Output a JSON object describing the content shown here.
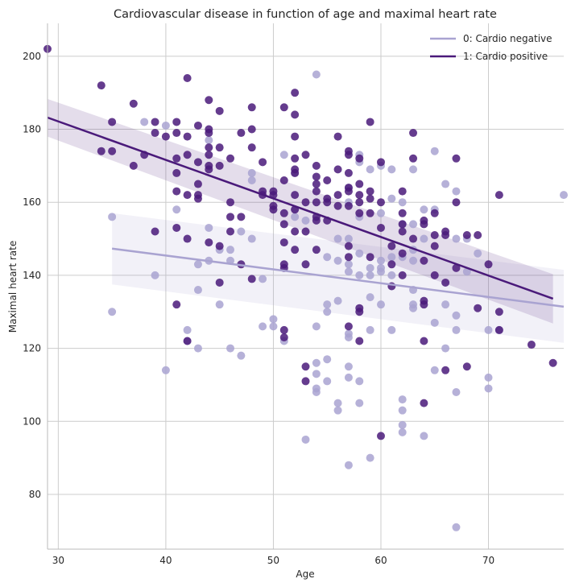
{
  "chart_data": {
    "type": "scatter",
    "title": "Cardiovascular disease in function of age and maximal heart rate",
    "xlabel": "Age",
    "ylabel": "Maximal heart rate",
    "xlim": [
      29,
      77
    ],
    "ylim": [
      65,
      209
    ],
    "xticks": [
      30,
      40,
      50,
      60,
      70
    ],
    "yticks": [
      80,
      100,
      120,
      140,
      160,
      180,
      200
    ],
    "grid": true,
    "legend_position": "top-right",
    "series": [
      {
        "name": "0: Cardio negative",
        "color": "#a9a3d1",
        "regression": {
          "x": [
            35,
            77
          ],
          "y": [
            147.3,
            131.4
          ],
          "ci_lower": [
            137.5,
            121.5
          ],
          "ci_upper": [
            157.0,
            141.5
          ]
        },
        "points": [
          [
            35,
            156
          ],
          [
            35,
            130
          ],
          [
            38,
            182
          ],
          [
            39,
            140
          ],
          [
            40,
            181
          ],
          [
            40,
            114
          ],
          [
            41,
            158
          ],
          [
            42,
            125
          ],
          [
            42,
            122
          ],
          [
            43,
            136
          ],
          [
            43,
            143
          ],
          [
            43,
            120
          ],
          [
            44,
            177
          ],
          [
            44,
            153
          ],
          [
            44,
            144
          ],
          [
            45,
            147
          ],
          [
            45,
            132
          ],
          [
            46,
            147
          ],
          [
            46,
            144
          ],
          [
            46,
            120
          ],
          [
            47,
            152
          ],
          [
            47,
            118
          ],
          [
            48,
            168
          ],
          [
            48,
            166
          ],
          [
            48,
            150
          ],
          [
            49,
            139
          ],
          [
            49,
            126
          ],
          [
            50,
            128
          ],
          [
            50,
            126
          ],
          [
            51,
            173
          ],
          [
            51,
            122
          ],
          [
            52,
            168
          ],
          [
            52,
            158
          ],
          [
            52,
            156
          ],
          [
            53,
            155
          ],
          [
            53,
            95
          ],
          [
            54,
            195
          ],
          [
            54,
            126
          ],
          [
            54,
            116
          ],
          [
            54,
            113
          ],
          [
            54,
            109
          ],
          [
            54,
            108
          ],
          [
            55,
            132
          ],
          [
            55,
            130
          ],
          [
            55,
            117
          ],
          [
            55,
            111
          ],
          [
            55,
            145
          ],
          [
            56,
            133
          ],
          [
            56,
            150
          ],
          [
            56,
            144
          ],
          [
            56,
            105
          ],
          [
            56,
            103
          ],
          [
            57,
            164
          ],
          [
            57,
            160
          ],
          [
            57,
            150
          ],
          [
            57,
            143
          ],
          [
            57,
            141
          ],
          [
            57,
            124
          ],
          [
            57,
            123
          ],
          [
            57,
            115
          ],
          [
            57,
            112
          ],
          [
            57,
            88
          ],
          [
            58,
            173
          ],
          [
            58,
            171
          ],
          [
            58,
            156
          ],
          [
            58,
            146
          ],
          [
            58,
            140
          ],
          [
            58,
            111
          ],
          [
            58,
            105
          ],
          [
            59,
            169
          ],
          [
            59,
            142
          ],
          [
            59,
            140
          ],
          [
            59,
            134
          ],
          [
            59,
            125
          ],
          [
            59,
            90
          ],
          [
            60,
            170
          ],
          [
            60,
            157
          ],
          [
            60,
            144
          ],
          [
            60,
            142
          ],
          [
            60,
            141
          ],
          [
            60,
            132
          ],
          [
            61,
            169
          ],
          [
            61,
            161
          ],
          [
            61,
            145
          ],
          [
            61,
            140
          ],
          [
            61,
            125
          ],
          [
            62,
            160
          ],
          [
            62,
            154
          ],
          [
            62,
            145
          ],
          [
            62,
            106
          ],
          [
            62,
            103
          ],
          [
            62,
            99
          ],
          [
            62,
            97
          ],
          [
            63,
            169
          ],
          [
            63,
            154
          ],
          [
            63,
            147
          ],
          [
            63,
            144
          ],
          [
            63,
            136
          ],
          [
            63,
            132
          ],
          [
            63,
            131
          ],
          [
            64,
            158
          ],
          [
            64,
            150
          ],
          [
            64,
            96
          ],
          [
            65,
            174
          ],
          [
            65,
            158
          ],
          [
            65,
            127
          ],
          [
            65,
            114
          ],
          [
            66,
            165
          ],
          [
            66,
            132
          ],
          [
            66,
            120
          ],
          [
            67,
            163
          ],
          [
            67,
            150
          ],
          [
            67,
            129
          ],
          [
            67,
            125
          ],
          [
            67,
            108
          ],
          [
            67,
            71
          ],
          [
            68,
            141
          ],
          [
            68,
            150
          ],
          [
            69,
            146
          ],
          [
            70,
            125
          ],
          [
            70,
            112
          ],
          [
            70,
            109
          ],
          [
            71,
            125
          ],
          [
            77,
            162
          ]
        ]
      },
      {
        "name": "1: Cardio positive",
        "color": "#4a1a7a",
        "regression": {
          "x": [
            29,
            76
          ],
          "y": [
            183.2,
            133.6
          ],
          "ci_lower": [
            178.0,
            126.8
          ],
          "ci_upper": [
            188.3,
            140.3
          ]
        },
        "points": [
          [
            29,
            202
          ],
          [
            34,
            192
          ],
          [
            34,
            174
          ],
          [
            35,
            182
          ],
          [
            35,
            174
          ],
          [
            37,
            187
          ],
          [
            37,
            170
          ],
          [
            38,
            173
          ],
          [
            39,
            182
          ],
          [
            39,
            179
          ],
          [
            39,
            152
          ],
          [
            40,
            178
          ],
          [
            41,
            182
          ],
          [
            41,
            179
          ],
          [
            41,
            172
          ],
          [
            41,
            168
          ],
          [
            41,
            163
          ],
          [
            41,
            153
          ],
          [
            41,
            132
          ],
          [
            42,
            194
          ],
          [
            42,
            178
          ],
          [
            42,
            173
          ],
          [
            42,
            162
          ],
          [
            42,
            150
          ],
          [
            42,
            122
          ],
          [
            43,
            181
          ],
          [
            43,
            171
          ],
          [
            43,
            165
          ],
          [
            43,
            162
          ],
          [
            43,
            161
          ],
          [
            44,
            188
          ],
          [
            44,
            180
          ],
          [
            44,
            179
          ],
          [
            44,
            175
          ],
          [
            44,
            173
          ],
          [
            44,
            170
          ],
          [
            44,
            169
          ],
          [
            44,
            149
          ],
          [
            45,
            185
          ],
          [
            45,
            175
          ],
          [
            45,
            170
          ],
          [
            45,
            148
          ],
          [
            45,
            138
          ],
          [
            46,
            172
          ],
          [
            46,
            160
          ],
          [
            46,
            156
          ],
          [
            46,
            152
          ],
          [
            47,
            179
          ],
          [
            47,
            156
          ],
          [
            47,
            143
          ],
          [
            48,
            186
          ],
          [
            48,
            180
          ],
          [
            48,
            175
          ],
          [
            48,
            139
          ],
          [
            49,
            171
          ],
          [
            49,
            163
          ],
          [
            49,
            162
          ],
          [
            50,
            163
          ],
          [
            50,
            162
          ],
          [
            50,
            159
          ],
          [
            50,
            158
          ],
          [
            51,
            186
          ],
          [
            51,
            166
          ],
          [
            51,
            157
          ],
          [
            51,
            154
          ],
          [
            51,
            149
          ],
          [
            51,
            143
          ],
          [
            51,
            142
          ],
          [
            51,
            125
          ],
          [
            51,
            123
          ],
          [
            52,
            190
          ],
          [
            52,
            184
          ],
          [
            52,
            178
          ],
          [
            52,
            172
          ],
          [
            52,
            169
          ],
          [
            52,
            168
          ],
          [
            52,
            162
          ],
          [
            52,
            158
          ],
          [
            52,
            152
          ],
          [
            52,
            147
          ],
          [
            53,
            173
          ],
          [
            53,
            160
          ],
          [
            53,
            152
          ],
          [
            53,
            143
          ],
          [
            53,
            115
          ],
          [
            53,
            111
          ],
          [
            54,
            170
          ],
          [
            54,
            167
          ],
          [
            54,
            165
          ],
          [
            54,
            163
          ],
          [
            54,
            160
          ],
          [
            54,
            156
          ],
          [
            54,
            155
          ],
          [
            54,
            147
          ],
          [
            55,
            166
          ],
          [
            55,
            161
          ],
          [
            55,
            160
          ],
          [
            55,
            155
          ],
          [
            56,
            178
          ],
          [
            56,
            169
          ],
          [
            56,
            162
          ],
          [
            56,
            159
          ],
          [
            57,
            174
          ],
          [
            57,
            173
          ],
          [
            57,
            168
          ],
          [
            57,
            164
          ],
          [
            57,
            163
          ],
          [
            57,
            159
          ],
          [
            57,
            148
          ],
          [
            57,
            145
          ],
          [
            57,
            126
          ],
          [
            58,
            172
          ],
          [
            58,
            165
          ],
          [
            58,
            162
          ],
          [
            58,
            160
          ],
          [
            58,
            157
          ],
          [
            58,
            131
          ],
          [
            58,
            130
          ],
          [
            58,
            122
          ],
          [
            59,
            182
          ],
          [
            59,
            163
          ],
          [
            59,
            161
          ],
          [
            59,
            157
          ],
          [
            59,
            145
          ],
          [
            60,
            171
          ],
          [
            60,
            160
          ],
          [
            60,
            153
          ],
          [
            60,
            96
          ],
          [
            61,
            148
          ],
          [
            61,
            143
          ],
          [
            61,
            137
          ],
          [
            62,
            163
          ],
          [
            62,
            157
          ],
          [
            62,
            152
          ],
          [
            62,
            146
          ],
          [
            62,
            140
          ],
          [
            62,
            154
          ],
          [
            63,
            179
          ],
          [
            63,
            172
          ],
          [
            63,
            150
          ],
          [
            64,
            155
          ],
          [
            64,
            154
          ],
          [
            64,
            144
          ],
          [
            64,
            133
          ],
          [
            64,
            132
          ],
          [
            64,
            122
          ],
          [
            64,
            105
          ],
          [
            65,
            157
          ],
          [
            65,
            151
          ],
          [
            65,
            148
          ],
          [
            65,
            140
          ],
          [
            66,
            152
          ],
          [
            66,
            151
          ],
          [
            66,
            138
          ],
          [
            66,
            114
          ],
          [
            67,
            172
          ],
          [
            67,
            160
          ],
          [
            67,
            142
          ],
          [
            68,
            151
          ],
          [
            68,
            115
          ],
          [
            69,
            151
          ],
          [
            69,
            131
          ],
          [
            70,
            143
          ],
          [
            71,
            162
          ],
          [
            71,
            130
          ],
          [
            71,
            125
          ],
          [
            74,
            121
          ],
          [
            76,
            116
          ]
        ]
      }
    ]
  }
}
